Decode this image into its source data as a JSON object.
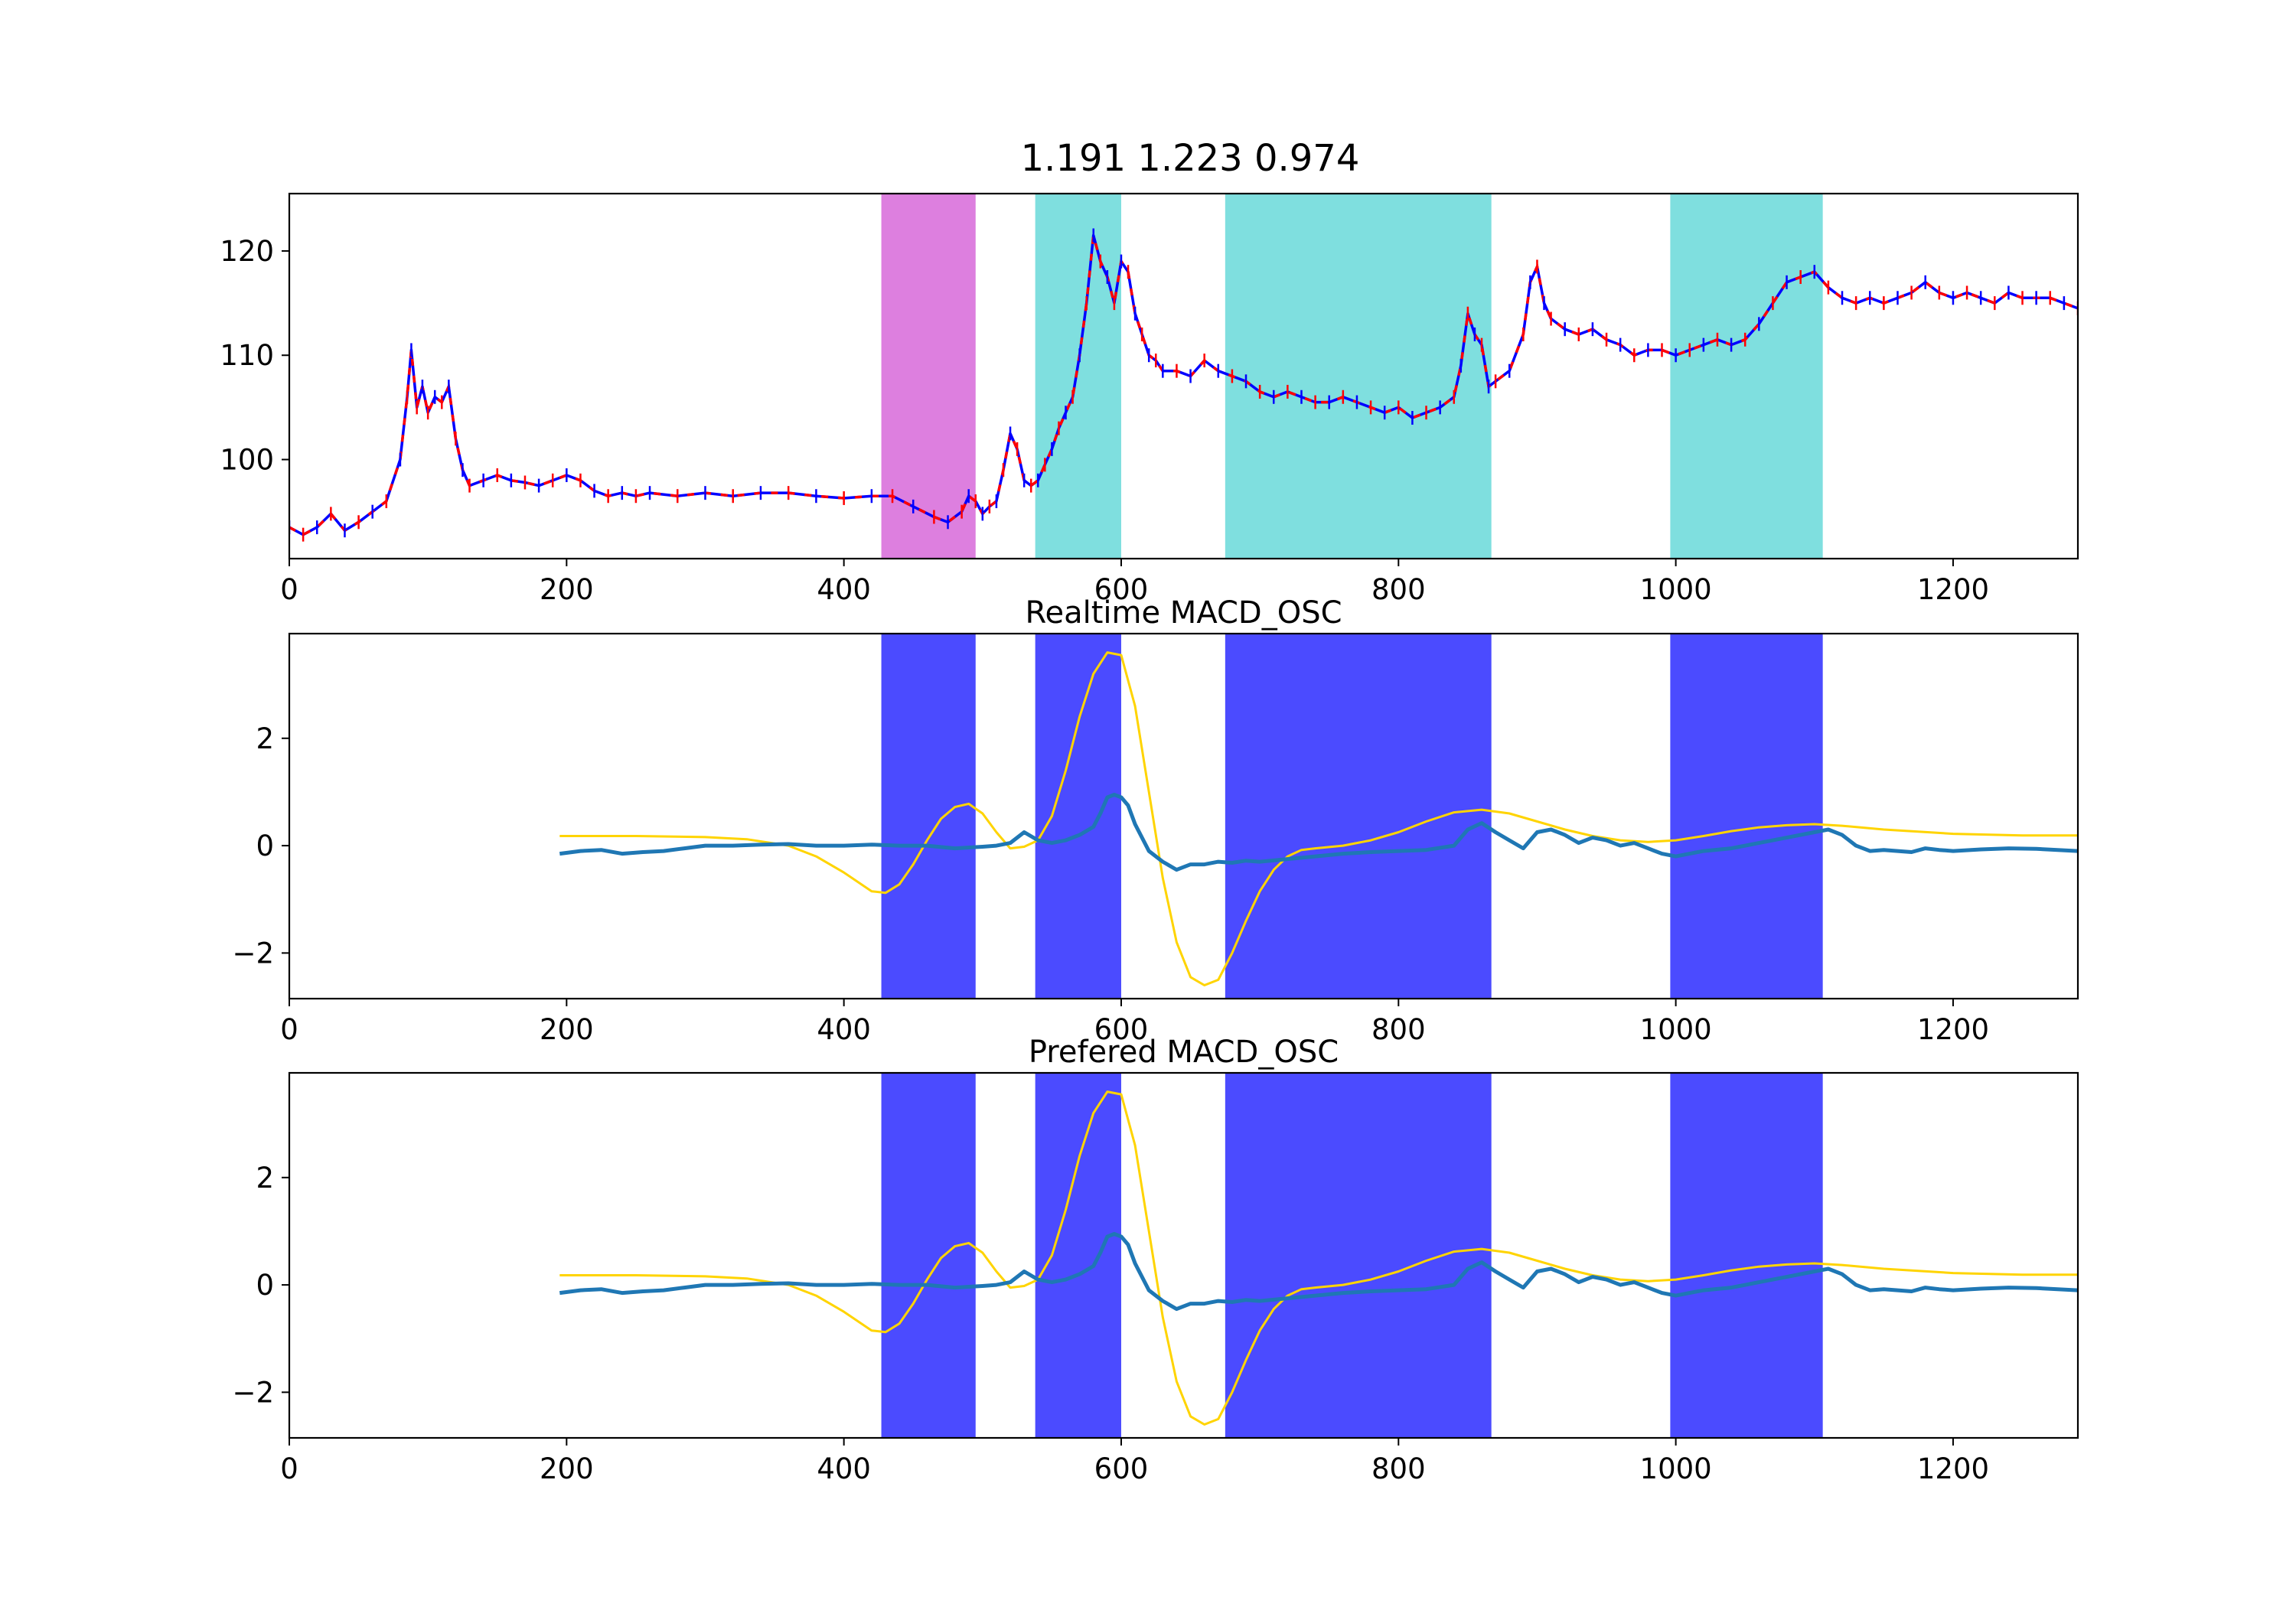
{
  "figure": {
    "title": "1.191 1.223 0.974"
  },
  "chart_data": [
    {
      "type": "line",
      "title": "",
      "xlim": [
        0,
        1290
      ],
      "ylim": [
        90.5,
        125.5
      ],
      "xticks": [
        0,
        200,
        400,
        600,
        800,
        1000,
        1200
      ],
      "yticks": [
        100,
        110,
        120
      ],
      "shaded_regions": [
        {
          "x": [
            427,
            495
          ],
          "color": "#DD7FDF"
        },
        {
          "x": [
            538,
            600
          ],
          "color": "#7FDFDF"
        },
        {
          "x": [
            675,
            867
          ],
          "color": "#7FDFDF"
        },
        {
          "x": [
            996,
            1106
          ],
          "color": "#7FDFDF"
        }
      ],
      "series": [
        {
          "color": "#0000FF",
          "highlight_color": "#FF0000",
          "x": [
            0,
            10,
            20,
            30,
            40,
            50,
            60,
            70,
            80,
            85,
            88,
            92,
            96,
            100,
            105,
            110,
            115,
            120,
            125,
            130,
            140,
            150,
            160,
            170,
            180,
            190,
            200,
            210,
            220,
            230,
            240,
            250,
            260,
            280,
            300,
            320,
            340,
            360,
            380,
            400,
            420,
            435,
            450,
            465,
            475,
            485,
            490,
            495,
            500,
            505,
            510,
            515,
            520,
            525,
            530,
            535,
            540,
            545,
            550,
            555,
            560,
            565,
            570,
            575,
            580,
            585,
            590,
            595,
            600,
            605,
            610,
            615,
            620,
            625,
            630,
            640,
            650,
            660,
            670,
            680,
            690,
            700,
            710,
            720,
            730,
            740,
            750,
            760,
            770,
            780,
            790,
            800,
            810,
            820,
            830,
            840,
            845,
            850,
            855,
            860,
            865,
            870,
            880,
            890,
            895,
            900,
            905,
            910,
            920,
            930,
            940,
            950,
            960,
            970,
            980,
            990,
            1000,
            1010,
            1020,
            1030,
            1040,
            1050,
            1060,
            1070,
            1080,
            1090,
            1100,
            1110,
            1120,
            1130,
            1140,
            1150,
            1160,
            1170,
            1180,
            1190,
            1200,
            1210,
            1220,
            1230,
            1240,
            1250,
            1260,
            1270,
            1280,
            1290
          ],
          "y": [
            93.5,
            92.8,
            93.5,
            94.8,
            93.2,
            94.0,
            95.0,
            96.0,
            100.0,
            106.0,
            110.5,
            105.0,
            107.0,
            104.5,
            106.0,
            105.5,
            107.0,
            102.0,
            99.0,
            97.5,
            98.0,
            98.5,
            98.0,
            97.8,
            97.5,
            98.0,
            98.5,
            98.0,
            97.0,
            96.5,
            96.8,
            96.5,
            96.8,
            96.5,
            96.8,
            96.5,
            96.8,
            96.8,
            96.5,
            96.3,
            96.5,
            96.5,
            95.5,
            94.5,
            94.0,
            95.0,
            96.5,
            96.0,
            94.8,
            95.5,
            96.0,
            99.0,
            102.5,
            101.0,
            98.0,
            97.5,
            98.0,
            99.5,
            101.0,
            103.0,
            104.5,
            106.0,
            110.0,
            115.0,
            121.5,
            119.0,
            117.5,
            115.0,
            119.0,
            118.0,
            114.0,
            112.0,
            110.0,
            109.5,
            108.5,
            108.5,
            108.0,
            109.5,
            108.5,
            108.0,
            107.5,
            106.5,
            106.0,
            106.5,
            106.0,
            105.5,
            105.5,
            106.0,
            105.5,
            105.0,
            104.5,
            105.0,
            104.0,
            104.5,
            105.0,
            106.0,
            109.0,
            114.0,
            112.0,
            111.0,
            107.0,
            107.5,
            108.5,
            112.0,
            117.0,
            118.5,
            115.0,
            113.5,
            112.5,
            112.0,
            112.5,
            111.5,
            111.0,
            110.0,
            110.5,
            110.5,
            110.0,
            110.5,
            111.0,
            111.5,
            111.0,
            111.5,
            113.0,
            115.0,
            117.0,
            117.5,
            118.0,
            116.5,
            115.5,
            115.0,
            115.5,
            115.0,
            115.5,
            116.0,
            117.0,
            116.0,
            115.5,
            116.0,
            115.5,
            115.0,
            116.0,
            115.5,
            115.5,
            115.5,
            115.0,
            114.5
          ]
        }
      ]
    },
    {
      "type": "line",
      "title": "Realtime MACD_OSC",
      "xlim": [
        0,
        1290
      ],
      "ylim": [
        -2.85,
        3.95
      ],
      "xticks": [
        0,
        200,
        400,
        600,
        800,
        1000,
        1200
      ],
      "yticks": [
        -2,
        0,
        2
      ],
      "shaded_regions": [
        {
          "x": [
            427,
            495
          ],
          "color": "#4B4BFF"
        },
        {
          "x": [
            538,
            600
          ],
          "color": "#4B4BFF"
        },
        {
          "x": [
            675,
            867
          ],
          "color": "#4B4BFF"
        },
        {
          "x": [
            996,
            1106
          ],
          "color": "#4B4BFF"
        }
      ],
      "series": [
        {
          "color": "#FFD400",
          "x": [
            195,
            250,
            300,
            330,
            360,
            380,
            400,
            420,
            430,
            440,
            450,
            460,
            470,
            480,
            490,
            500,
            510,
            520,
            530,
            540,
            550,
            560,
            570,
            580,
            590,
            600,
            610,
            620,
            630,
            640,
            650,
            660,
            670,
            680,
            690,
            700,
            710,
            720,
            730,
            740,
            760,
            780,
            800,
            820,
            840,
            860,
            880,
            900,
            920,
            940,
            960,
            980,
            1000,
            1020,
            1040,
            1060,
            1080,
            1100,
            1120,
            1150,
            1200,
            1250,
            1290
          ],
          "y": [
            0.18,
            0.18,
            0.16,
            0.12,
            0.0,
            -0.2,
            -0.5,
            -0.85,
            -0.88,
            -0.72,
            -0.35,
            0.1,
            0.5,
            0.72,
            0.78,
            0.6,
            0.25,
            -0.05,
            -0.02,
            0.1,
            0.55,
            1.4,
            2.4,
            3.2,
            3.6,
            3.55,
            2.6,
            1.0,
            -0.6,
            -1.8,
            -2.45,
            -2.6,
            -2.5,
            -2.0,
            -1.4,
            -0.85,
            -0.45,
            -0.2,
            -0.08,
            -0.05,
            0.0,
            0.1,
            0.25,
            0.45,
            0.62,
            0.67,
            0.6,
            0.45,
            0.3,
            0.18,
            0.1,
            0.07,
            0.1,
            0.18,
            0.27,
            0.34,
            0.38,
            0.4,
            0.37,
            0.3,
            0.22,
            0.19,
            0.19
          ]
        },
        {
          "color": "#1F77B4",
          "x": [
            195,
            210,
            225,
            240,
            255,
            270,
            285,
            300,
            320,
            340,
            360,
            380,
            400,
            420,
            440,
            460,
            480,
            500,
            510,
            520,
            530,
            540,
            550,
            560,
            570,
            580,
            585,
            590,
            595,
            600,
            605,
            610,
            620,
            630,
            640,
            650,
            660,
            670,
            680,
            690,
            700,
            720,
            740,
            760,
            780,
            800,
            820,
            840,
            850,
            860,
            870,
            880,
            890,
            900,
            910,
            920,
            930,
            940,
            950,
            960,
            970,
            980,
            990,
            1000,
            1010,
            1020,
            1040,
            1060,
            1080,
            1100,
            1110,
            1120,
            1130,
            1140,
            1150,
            1160,
            1170,
            1180,
            1190,
            1200,
            1220,
            1240,
            1260,
            1290
          ],
          "y": [
            -0.15,
            -0.1,
            -0.08,
            -0.15,
            -0.12,
            -0.1,
            -0.05,
            0.0,
            0.0,
            0.02,
            0.03,
            0.0,
            0.0,
            0.02,
            0.0,
            0.0,
            -0.05,
            -0.02,
            0.0,
            0.05,
            0.25,
            0.1,
            0.05,
            0.1,
            0.2,
            0.35,
            0.6,
            0.9,
            0.95,
            0.9,
            0.75,
            0.4,
            -0.1,
            -0.3,
            -0.45,
            -0.35,
            -0.35,
            -0.3,
            -0.32,
            -0.28,
            -0.3,
            -0.25,
            -0.2,
            -0.15,
            -0.12,
            -0.1,
            -0.08,
            0.0,
            0.3,
            0.42,
            0.25,
            0.1,
            -0.05,
            0.25,
            0.3,
            0.2,
            0.05,
            0.15,
            0.1,
            0.0,
            0.05,
            -0.05,
            -0.15,
            -0.2,
            -0.15,
            -0.1,
            -0.05,
            0.05,
            0.15,
            0.25,
            0.3,
            0.2,
            0.0,
            -0.1,
            -0.08,
            -0.1,
            -0.12,
            -0.05,
            -0.08,
            -0.1,
            -0.07,
            -0.05,
            -0.06,
            -0.1
          ]
        }
      ]
    },
    {
      "type": "line",
      "title": "Prefered MACD_OSC",
      "xlim": [
        0,
        1290
      ],
      "ylim": [
        -2.85,
        3.95
      ],
      "xticks": [
        0,
        200,
        400,
        600,
        800,
        1000,
        1200
      ],
      "yticks": [
        -2,
        0,
        2
      ],
      "shaded_regions": [
        {
          "x": [
            427,
            495
          ],
          "color": "#4B4BFF"
        },
        {
          "x": [
            538,
            600
          ],
          "color": "#4B4BFF"
        },
        {
          "x": [
            675,
            867
          ],
          "color": "#4B4BFF"
        },
        {
          "x": [
            996,
            1106
          ],
          "color": "#4B4BFF"
        }
      ],
      "series": [
        {
          "color": "#FFD400",
          "x": [
            195,
            250,
            300,
            330,
            360,
            380,
            400,
            420,
            430,
            440,
            450,
            460,
            470,
            480,
            490,
            500,
            510,
            520,
            530,
            540,
            550,
            560,
            570,
            580,
            590,
            600,
            610,
            620,
            630,
            640,
            650,
            660,
            670,
            680,
            690,
            700,
            710,
            720,
            730,
            740,
            760,
            780,
            800,
            820,
            840,
            860,
            880,
            900,
            920,
            940,
            960,
            980,
            1000,
            1020,
            1040,
            1060,
            1080,
            1100,
            1120,
            1150,
            1200,
            1250,
            1290
          ],
          "y": [
            0.18,
            0.18,
            0.16,
            0.12,
            0.0,
            -0.2,
            -0.5,
            -0.85,
            -0.88,
            -0.72,
            -0.35,
            0.1,
            0.5,
            0.72,
            0.78,
            0.6,
            0.25,
            -0.05,
            -0.02,
            0.1,
            0.55,
            1.4,
            2.4,
            3.2,
            3.6,
            3.55,
            2.6,
            1.0,
            -0.6,
            -1.8,
            -2.45,
            -2.6,
            -2.5,
            -2.0,
            -1.4,
            -0.85,
            -0.45,
            -0.2,
            -0.08,
            -0.05,
            0.0,
            0.1,
            0.25,
            0.45,
            0.62,
            0.67,
            0.6,
            0.45,
            0.3,
            0.18,
            0.1,
            0.07,
            0.1,
            0.18,
            0.27,
            0.34,
            0.38,
            0.4,
            0.37,
            0.3,
            0.22,
            0.19,
            0.19
          ]
        },
        {
          "color": "#1F77B4",
          "x": [
            195,
            210,
            225,
            240,
            255,
            270,
            285,
            300,
            320,
            340,
            360,
            380,
            400,
            420,
            440,
            460,
            480,
            500,
            510,
            520,
            530,
            540,
            550,
            560,
            570,
            580,
            585,
            590,
            595,
            600,
            605,
            610,
            620,
            630,
            640,
            650,
            660,
            670,
            680,
            690,
            700,
            720,
            740,
            760,
            780,
            800,
            820,
            840,
            850,
            860,
            870,
            880,
            890,
            900,
            910,
            920,
            930,
            940,
            950,
            960,
            970,
            980,
            990,
            1000,
            1010,
            1020,
            1040,
            1060,
            1080,
            1100,
            1110,
            1120,
            1130,
            1140,
            1150,
            1160,
            1170,
            1180,
            1190,
            1200,
            1220,
            1240,
            1260,
            1290
          ],
          "y": [
            -0.15,
            -0.1,
            -0.08,
            -0.15,
            -0.12,
            -0.1,
            -0.05,
            0.0,
            0.0,
            0.02,
            0.03,
            0.0,
            0.0,
            0.02,
            0.0,
            0.0,
            -0.05,
            -0.02,
            0.0,
            0.05,
            0.25,
            0.1,
            0.05,
            0.1,
            0.2,
            0.35,
            0.6,
            0.9,
            0.95,
            0.9,
            0.75,
            0.4,
            -0.1,
            -0.3,
            -0.45,
            -0.35,
            -0.35,
            -0.3,
            -0.32,
            -0.28,
            -0.3,
            -0.25,
            -0.2,
            -0.15,
            -0.12,
            -0.1,
            -0.08,
            0.0,
            0.3,
            0.42,
            0.25,
            0.1,
            -0.05,
            0.25,
            0.3,
            0.2,
            0.05,
            0.15,
            0.1,
            0.0,
            0.05,
            -0.05,
            -0.15,
            -0.2,
            -0.15,
            -0.1,
            -0.05,
            0.05,
            0.15,
            0.25,
            0.3,
            0.2,
            0.0,
            -0.1,
            -0.08,
            -0.1,
            -0.12,
            -0.05,
            -0.08,
            -0.1,
            -0.07,
            -0.05,
            -0.06,
            -0.1
          ]
        }
      ]
    }
  ]
}
